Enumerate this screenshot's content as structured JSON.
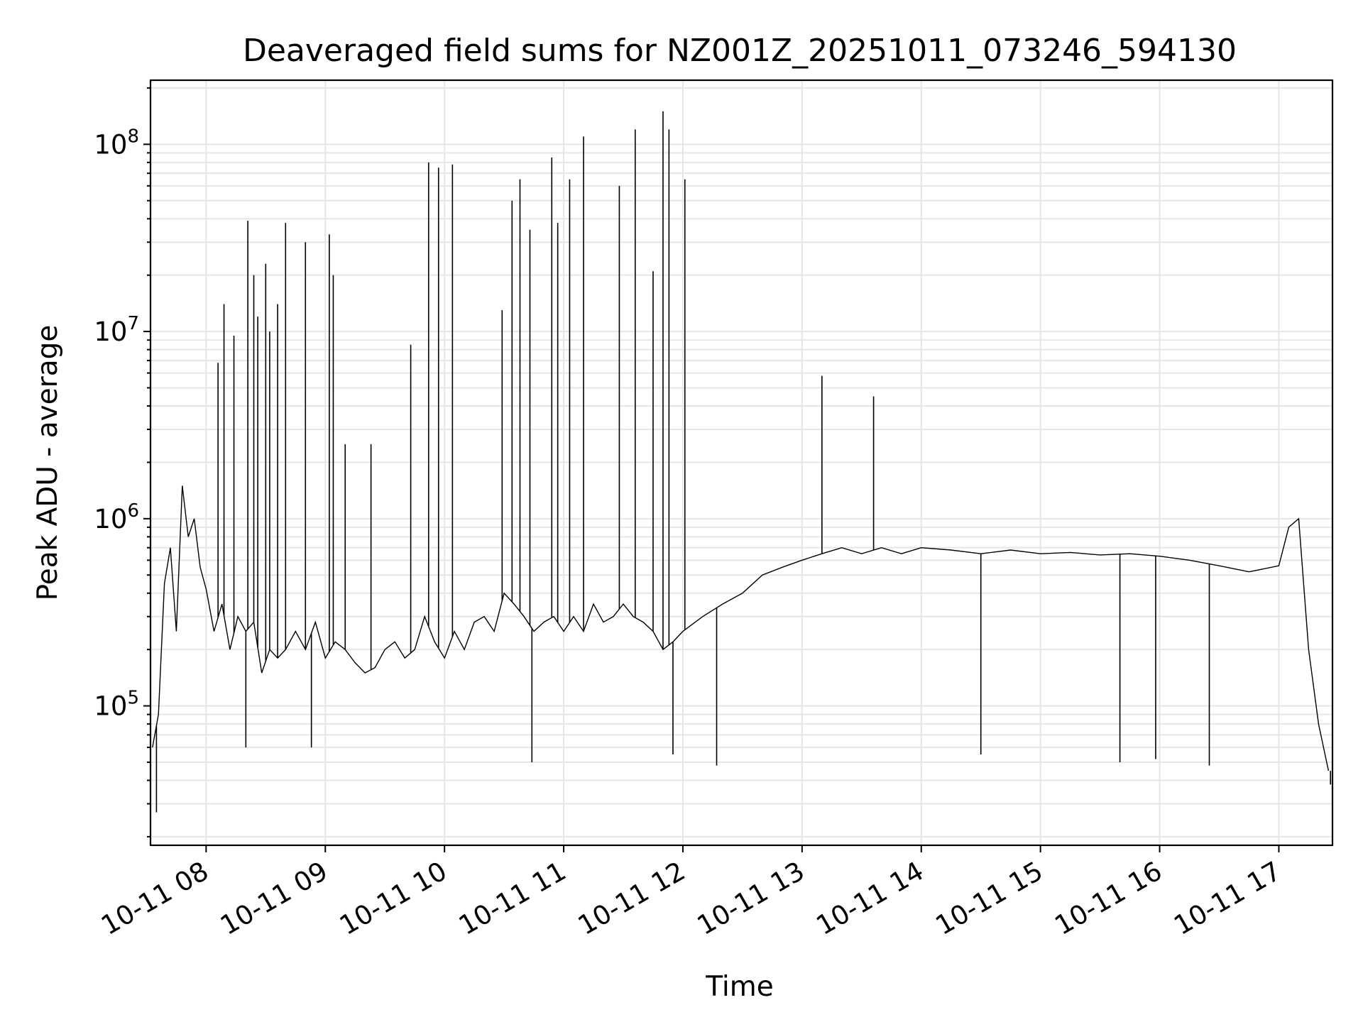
{
  "chart_data": {
    "type": "line",
    "title": "Deaveraged field sums for NZ001Z_20251011_073246_594130",
    "xlabel": "Time",
    "ylabel": "Peak ADU - average",
    "yscale": "log",
    "grid": true,
    "grid_minor": true,
    "legend": "none",
    "line_color": "#000000",
    "grid_color": "#e6e6e6",
    "xlim": [
      "2025-10-11 07:32",
      "2025-10-11 17:27"
    ],
    "ylim": [
      18000,
      220000000
    ],
    "x_ticks": [
      {
        "value": "2025-10-11 08:00",
        "label": "10-11 08"
      },
      {
        "value": "2025-10-11 09:00",
        "label": "10-11 09"
      },
      {
        "value": "2025-10-11 10:00",
        "label": "10-11 10"
      },
      {
        "value": "2025-10-11 11:00",
        "label": "10-11 11"
      },
      {
        "value": "2025-10-11 12:00",
        "label": "10-11 12"
      },
      {
        "value": "2025-10-11 13:00",
        "label": "10-11 13"
      },
      {
        "value": "2025-10-11 14:00",
        "label": "10-11 14"
      },
      {
        "value": "2025-10-11 15:00",
        "label": "10-11 15"
      },
      {
        "value": "2025-10-11 16:00",
        "label": "10-11 16"
      },
      {
        "value": "2025-10-11 17:00",
        "label": "10-11 17"
      }
    ],
    "y_ticks": [
      {
        "value": 100000,
        "mantissa": "10",
        "exponent": "5"
      },
      {
        "value": 1000000,
        "mantissa": "10",
        "exponent": "6"
      },
      {
        "value": 10000000,
        "mantissa": "10",
        "exponent": "7"
      },
      {
        "value": 100000000,
        "mantissa": "10",
        "exponent": "8"
      }
    ],
    "series": [
      {
        "x": [
          "2025-10-11 07:33",
          "2025-10-11 07:36",
          "2025-10-11 07:39",
          "2025-10-11 07:42",
          "2025-10-11 07:45",
          "2025-10-11 07:48",
          "2025-10-11 07:51",
          "2025-10-11 07:54",
          "2025-10-11 07:57",
          "2025-10-11 08:00",
          "2025-10-11 08:04",
          "2025-10-11 08:08",
          "2025-10-11 08:12",
          "2025-10-11 08:16",
          "2025-10-11 08:20",
          "2025-10-11 08:24",
          "2025-10-11 08:28",
          "2025-10-11 08:32",
          "2025-10-11 08:36",
          "2025-10-11 08:40",
          "2025-10-11 08:45",
          "2025-10-11 08:50",
          "2025-10-11 08:55",
          "2025-10-11 09:00",
          "2025-10-11 09:05",
          "2025-10-11 09:10",
          "2025-10-11 09:15",
          "2025-10-11 09:20",
          "2025-10-11 09:25",
          "2025-10-11 09:30",
          "2025-10-11 09:35",
          "2025-10-11 09:40",
          "2025-10-11 09:45",
          "2025-10-11 09:50",
          "2025-10-11 09:55",
          "2025-10-11 10:00",
          "2025-10-11 10:05",
          "2025-10-11 10:10",
          "2025-10-11 10:15",
          "2025-10-11 10:20",
          "2025-10-11 10:25",
          "2025-10-11 10:30",
          "2025-10-11 10:35",
          "2025-10-11 10:40",
          "2025-10-11 10:45",
          "2025-10-11 10:50",
          "2025-10-11 10:55",
          "2025-10-11 11:00",
          "2025-10-11 11:05",
          "2025-10-11 11:10",
          "2025-10-11 11:15",
          "2025-10-11 11:20",
          "2025-10-11 11:25",
          "2025-10-11 11:30",
          "2025-10-11 11:35",
          "2025-10-11 11:40",
          "2025-10-11 11:45",
          "2025-10-11 11:50",
          "2025-10-11 11:55",
          "2025-10-11 12:00",
          "2025-10-11 12:10",
          "2025-10-11 12:20",
          "2025-10-11 12:30",
          "2025-10-11 12:40",
          "2025-10-11 12:50",
          "2025-10-11 13:00",
          "2025-10-11 13:10",
          "2025-10-11 13:20",
          "2025-10-11 13:30",
          "2025-10-11 13:40",
          "2025-10-11 13:50",
          "2025-10-11 14:00",
          "2025-10-11 14:15",
          "2025-10-11 14:30",
          "2025-10-11 14:45",
          "2025-10-11 15:00",
          "2025-10-11 15:15",
          "2025-10-11 15:30",
          "2025-10-11 15:45",
          "2025-10-11 16:00",
          "2025-10-11 16:15",
          "2025-10-11 16:30",
          "2025-10-11 16:45",
          "2025-10-11 17:00",
          "2025-10-11 17:05",
          "2025-10-11 17:10",
          "2025-10-11 17:15",
          "2025-10-11 17:20",
          "2025-10-11 17:25"
        ],
        "y": [
          60000,
          90000,
          450000,
          700000,
          250000,
          1500000,
          800000,
          1000000,
          550000,
          420000,
          250000,
          350000,
          200000,
          300000,
          250000,
          280000,
          150000,
          200000,
          180000,
          200000,
          250000,
          200000,
          280000,
          180000,
          220000,
          200000,
          170000,
          150000,
          160000,
          200000,
          220000,
          180000,
          200000,
          300000,
          220000,
          180000,
          250000,
          200000,
          280000,
          300000,
          250000,
          400000,
          350000,
          300000,
          250000,
          280000,
          300000,
          250000,
          300000,
          250000,
          350000,
          280000,
          300000,
          350000,
          300000,
          280000,
          250000,
          200000,
          220000,
          250000,
          300000,
          350000,
          400000,
          500000,
          550000,
          600000,
          650000,
          700000,
          650000,
          700000,
          650000,
          700000,
          680000,
          650000,
          680000,
          650000,
          660000,
          640000,
          650000,
          630000,
          600000,
          560000,
          520000,
          560000,
          900000,
          1000000,
          200000,
          80000,
          45000
        ]
      },
      {
        "type": "spikes",
        "x": [
          "2025-10-11 08:06",
          "2025-10-11 08:09",
          "2025-10-11 08:14",
          "2025-10-11 08:21",
          "2025-10-11 08:24",
          "2025-10-11 08:26",
          "2025-10-11 08:30",
          "2025-10-11 08:32",
          "2025-10-11 08:36",
          "2025-10-11 08:40",
          "2025-10-11 08:50",
          "2025-10-11 09:02",
          "2025-10-11 09:04",
          "2025-10-11 09:10",
          "2025-10-11 09:23",
          "2025-10-11 09:43",
          "2025-10-11 09:52",
          "2025-10-11 09:57",
          "2025-10-11 10:04",
          "2025-10-11 10:29",
          "2025-10-11 10:34",
          "2025-10-11 10:38",
          "2025-10-11 10:43",
          "2025-10-11 10:54",
          "2025-10-11 10:57",
          "2025-10-11 11:03",
          "2025-10-11 11:10",
          "2025-10-11 11:28",
          "2025-10-11 11:36",
          "2025-10-11 11:45",
          "2025-10-11 11:50",
          "2025-10-11 11:53",
          "2025-10-11 12:01",
          "2025-10-11 13:10",
          "2025-10-11 13:36"
        ],
        "y": [
          6800000,
          14000000,
          9500000,
          39000000,
          20000000,
          12000000,
          23000000,
          10000000,
          14000000,
          38000000,
          30000000,
          33000000,
          20000000,
          2500000,
          2500000,
          8500000,
          80000000,
          75000000,
          78000000,
          13000000,
          50000000,
          65000000,
          35000000,
          85000000,
          38000000,
          65000000,
          110000000,
          60000000,
          120000000,
          21000000,
          150000000,
          120000000,
          65000000,
          5800000,
          4500000
        ]
      },
      {
        "type": "dips",
        "x": [
          "2025-10-11 07:35",
          "2025-10-11 08:20",
          "2025-10-11 08:53",
          "2025-10-11 10:44",
          "2025-10-11 11:55",
          "2025-10-11 12:17",
          "2025-10-11 14:30",
          "2025-10-11 15:40",
          "2025-10-11 15:58",
          "2025-10-11 16:25",
          "2025-10-11 17:26"
        ],
        "y": [
          27000,
          60000,
          60000,
          50000,
          55000,
          48000,
          55000,
          50000,
          52000,
          48000,
          38000
        ]
      }
    ]
  }
}
